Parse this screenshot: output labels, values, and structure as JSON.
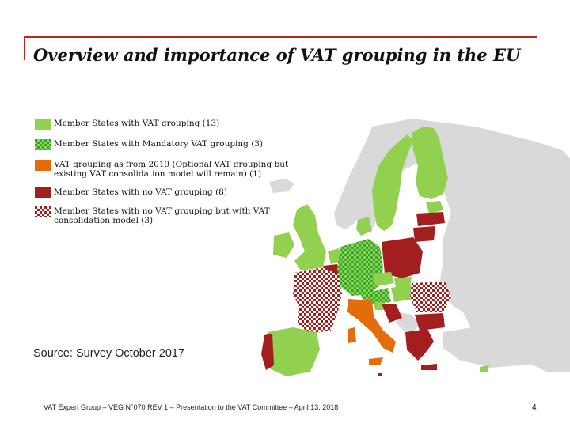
{
  "title": "Overview and importance of VAT grouping in the EU",
  "legend": [
    {
      "label": "Member States with VAT grouping (13)",
      "swatch": "solid-green"
    },
    {
      "label": "Member States with Mandatory VAT grouping (3)",
      "swatch": "checker-green"
    },
    {
      "label": "VAT grouping as from 2019 (Optional VAT grouping but existing VAT consolidation model will remain) (1)",
      "swatch": "solid-orange"
    },
    {
      "label": "Member States with no VAT grouping (8)",
      "swatch": "solid-red"
    },
    {
      "label": "Member States with no VAT grouping but with VAT consolidation model (3)",
      "swatch": "checker-red"
    }
  ],
  "source": "Source: Survey October 2017",
  "footer": "VAT Expert Group – VEG N°070 REV 1 – Presentation to the VAT Committee – April 13, 2018",
  "page_number": "4",
  "colors": {
    "green": "#92d050",
    "checker_green": "#33b233",
    "orange": "#e46c0a",
    "red": "#a31f1f",
    "grey": "#d9d9d9",
    "accent_line": "#b22a1e"
  }
}
